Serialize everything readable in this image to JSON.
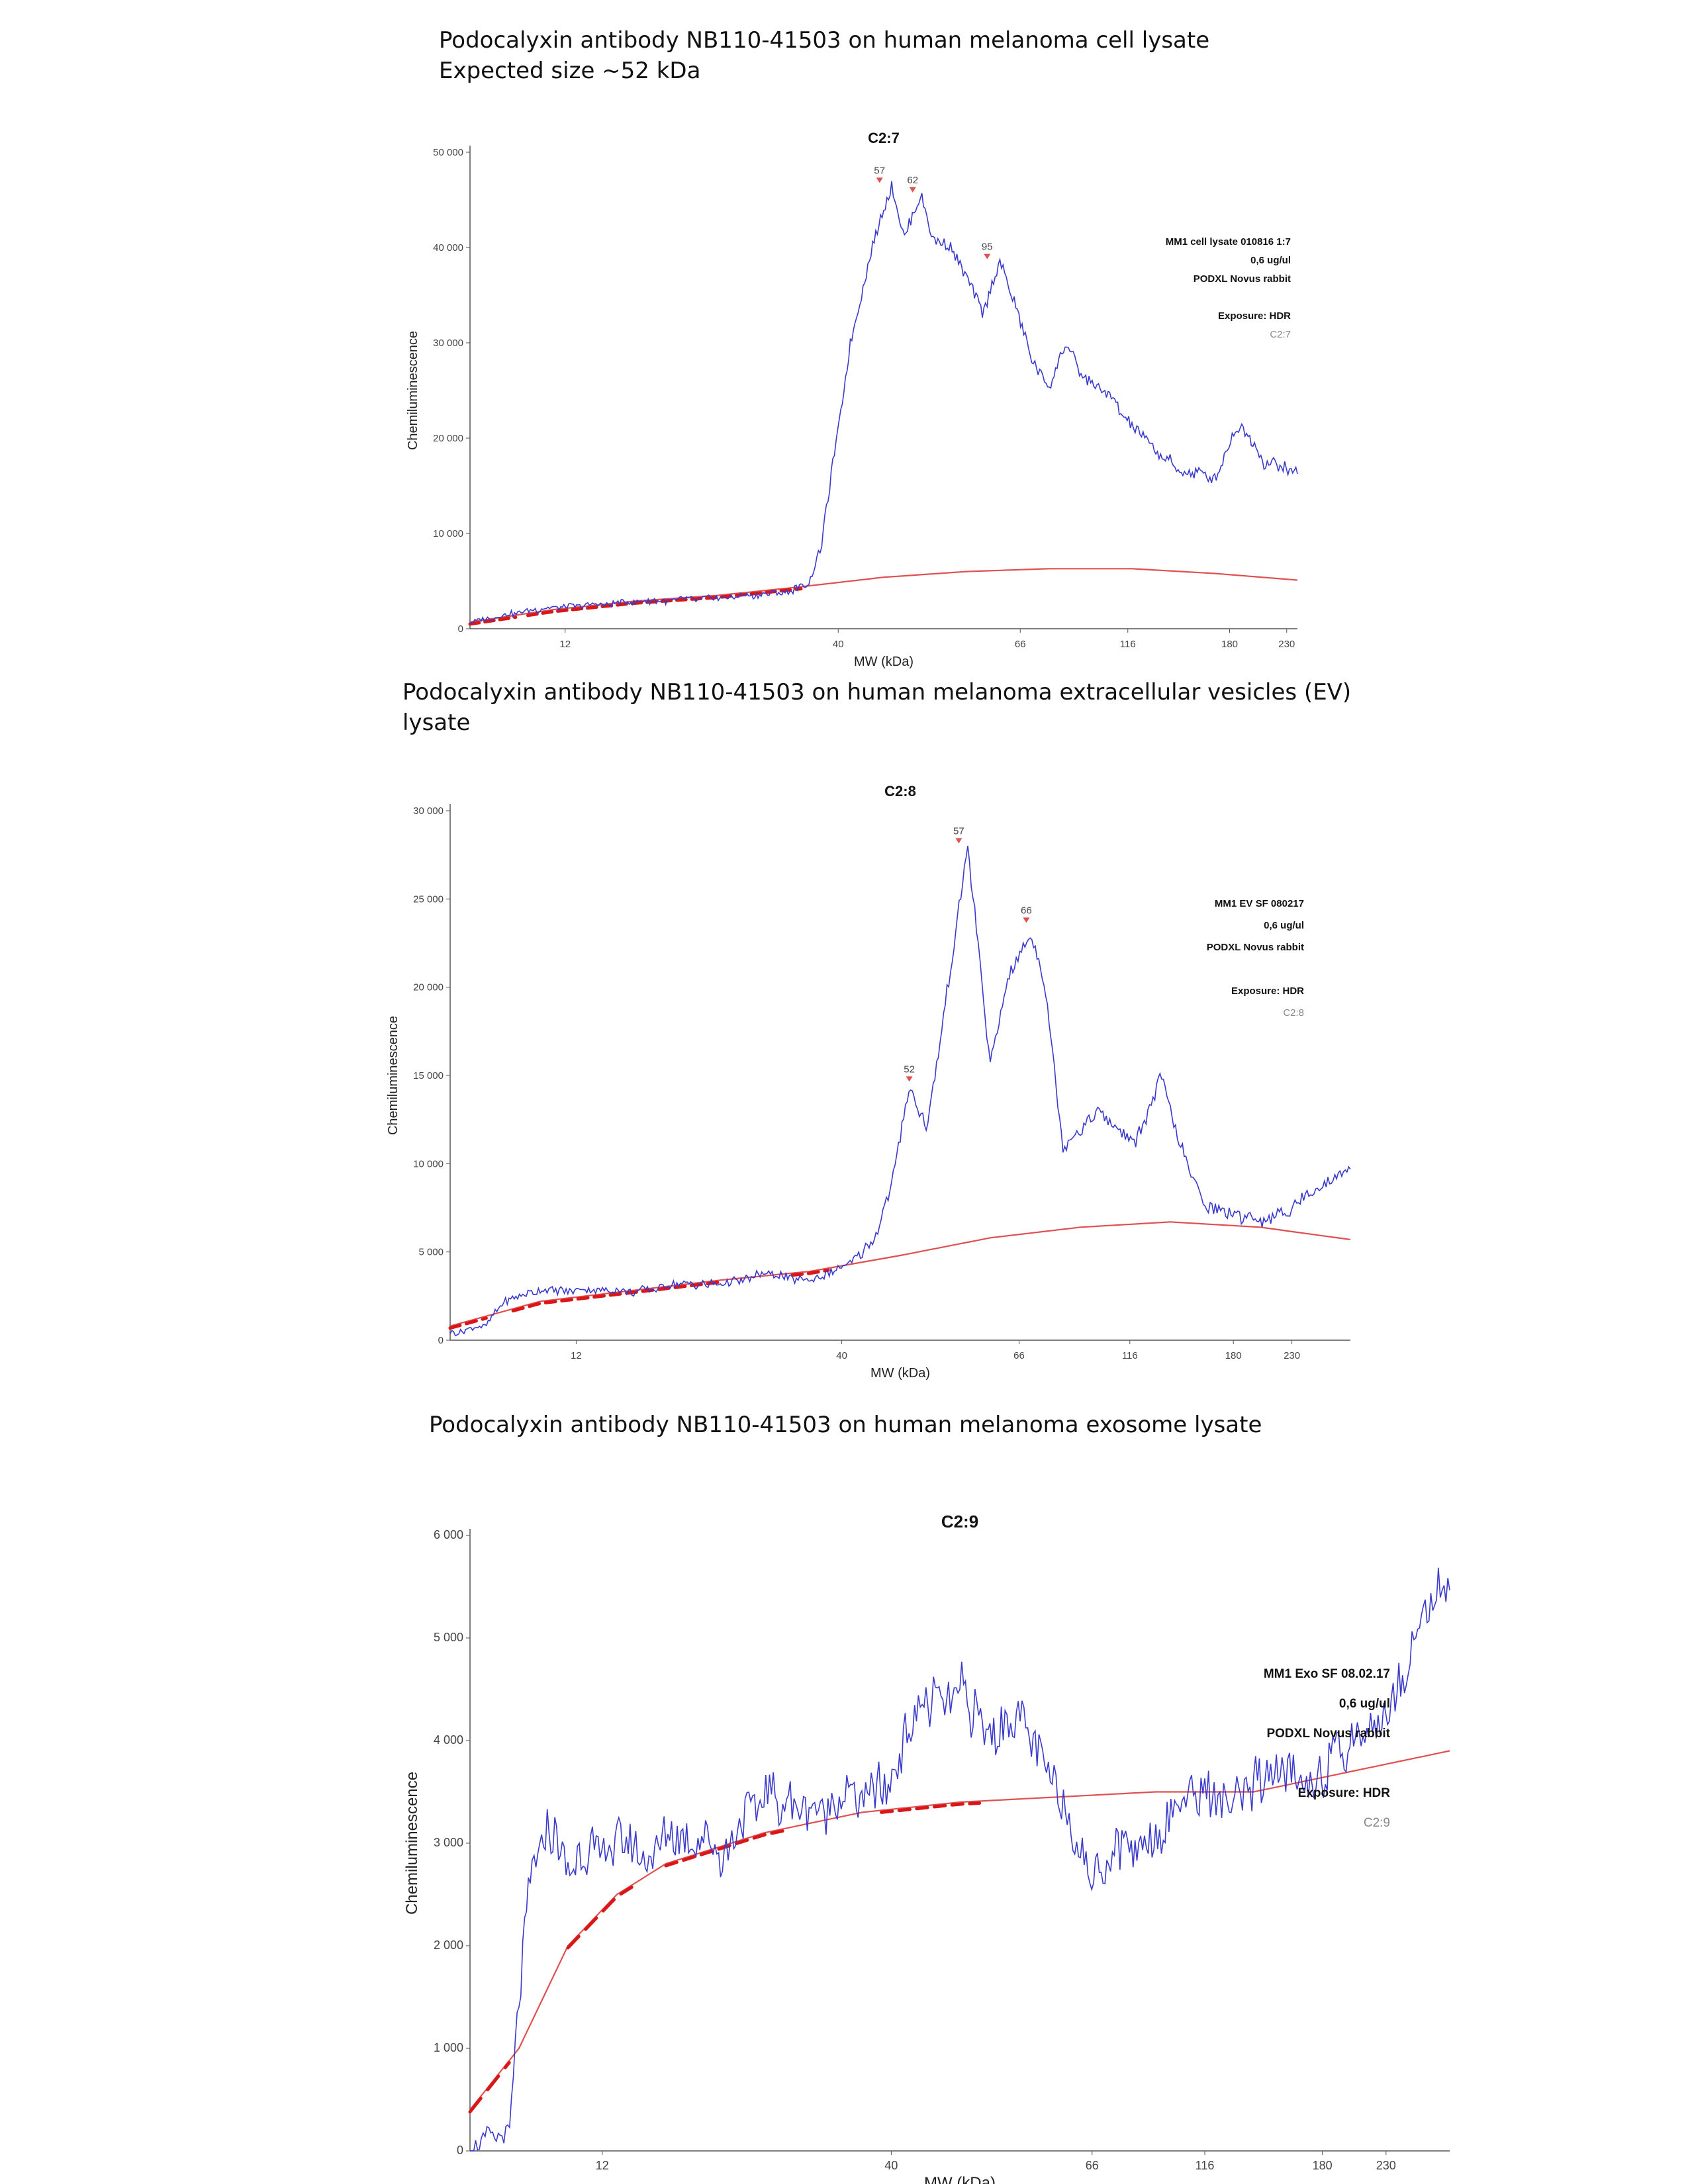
{
  "captions": [
    {
      "lines": [
        "Podocalyxin antibody NB110-41503 on human melanoma cell lysate",
        "Expected size ~52 kDa"
      ]
    },
    {
      "lines": [
        "Podocalyxin antibody NB110-41503 on human melanoma extracellular vesicles (EV)",
        "lysate"
      ]
    },
    {
      "lines": [
        "Podocalyxin antibody NB110-41503 on human melanoma exosome lysate"
      ]
    }
  ],
  "chart_data": [
    {
      "type": "line",
      "title": "C2:7",
      "xlabel": "MW (kDa)",
      "ylabel": "Chemiluminescence",
      "ylim": [
        0,
        50000
      ],
      "yticks": [
        0,
        10000,
        20000,
        30000,
        40000,
        50000
      ],
      "ytick_labels": [
        "0",
        "10 000",
        "20 000",
        "30 000",
        "40 000",
        "50 000"
      ],
      "xticks": [
        "12",
        "40",
        "66",
        "116",
        "180",
        "230"
      ],
      "legend_lines": [
        "MM1 cell lysate 010816 1:7",
        "0,6 ug/ul",
        "PODXL Novus rabbit",
        "",
        "Exposure: HDR",
        "C2:7"
      ],
      "peaks": [
        {
          "label": "57",
          "value": 46500
        },
        {
          "label": "62",
          "value": 45500
        },
        {
          "label": "95",
          "value": 38500
        }
      ],
      "colors": {
        "signal": "#3a3acc",
        "baseline": "#e05050",
        "markers": "#d81818",
        "peak": "#e05050"
      },
      "series": [
        {
          "role": "signal",
          "points": [
            [
              0.0,
              600
            ],
            [
              0.05,
              1600
            ],
            [
              0.1,
              2200
            ],
            [
              0.2,
              2800
            ],
            [
              0.3,
              3200
            ],
            [
              0.38,
              3800
            ],
            [
              0.41,
              4600
            ],
            [
              0.425,
              9000
            ],
            [
              0.44,
              18000
            ],
            [
              0.46,
              30000
            ],
            [
              0.48,
              38000
            ],
            [
              0.5,
              44000
            ],
            [
              0.51,
              46500
            ],
            [
              0.525,
              41000
            ],
            [
              0.545,
              45500
            ],
            [
              0.56,
              41000
            ],
            [
              0.58,
              40500
            ],
            [
              0.6,
              37000
            ],
            [
              0.62,
              33000
            ],
            [
              0.64,
              38500
            ],
            [
              0.66,
              33500
            ],
            [
              0.68,
              28000
            ],
            [
              0.7,
              25500
            ],
            [
              0.72,
              30000
            ],
            [
              0.74,
              26500
            ],
            [
              0.77,
              24500
            ],
            [
              0.8,
              21500
            ],
            [
              0.83,
              18500
            ],
            [
              0.86,
              16500
            ],
            [
              0.9,
              16000
            ],
            [
              0.93,
              21500
            ],
            [
              0.96,
              17500
            ],
            [
              1.0,
              16500
            ]
          ]
        },
        {
          "role": "baseline",
          "points": [
            [
              0.0,
              700
            ],
            [
              0.1,
              2000
            ],
            [
              0.2,
              2900
            ],
            [
              0.3,
              3500
            ],
            [
              0.4,
              4400
            ],
            [
              0.5,
              5400
            ],
            [
              0.6,
              6000
            ],
            [
              0.7,
              6300
            ],
            [
              0.8,
              6300
            ],
            [
              0.9,
              5800
            ],
            [
              1.0,
              5100
            ]
          ]
        }
      ],
      "markers": [
        [
          0.0,
          0.055,
          600
        ],
        [
          0.07,
          0.4,
          2600
        ]
      ]
    },
    {
      "type": "line",
      "title": "C2:8",
      "xlabel": "MW (kDa)",
      "ylabel": "Chemiluminescence",
      "ylim": [
        0,
        30000
      ],
      "yticks": [
        0,
        5000,
        10000,
        15000,
        20000,
        25000,
        30000
      ],
      "ytick_labels": [
        "0",
        "5 000",
        "10 000",
        "15 000",
        "20 000",
        "25 000",
        "30 000"
      ],
      "xticks": [
        "12",
        "40",
        "66",
        "116",
        "180",
        "230"
      ],
      "legend_lines": [
        "MM1 EV SF 080217",
        "0,6 ug/ul",
        "PODXL Novus rabbit",
        "",
        "Exposure: HDR",
        "C2:8"
      ],
      "peaks": [
        {
          "label": "52",
          "value": 14500
        },
        {
          "label": "57",
          "value": 28000
        },
        {
          "label": "66",
          "value": 23500
        }
      ],
      "colors": {
        "signal": "#3a3acc",
        "baseline": "#e05050",
        "markers": "#d81818",
        "peak": "#e05050"
      },
      "series": [
        {
          "role": "signal",
          "points": [
            [
              0.0,
              400
            ],
            [
              0.04,
              800
            ],
            [
              0.06,
              2200
            ],
            [
              0.1,
              2800
            ],
            [
              0.15,
              2900
            ],
            [
              0.2,
              2700
            ],
            [
              0.25,
              3100
            ],
            [
              0.3,
              3200
            ],
            [
              0.35,
              3700
            ],
            [
              0.4,
              3400
            ],
            [
              0.44,
              4200
            ],
            [
              0.47,
              5600
            ],
            [
              0.49,
              8500
            ],
            [
              0.51,
              14500
            ],
            [
              0.53,
              12000
            ],
            [
              0.55,
              19000
            ],
            [
              0.575,
              28000
            ],
            [
              0.6,
              15500
            ],
            [
              0.62,
              20500
            ],
            [
              0.645,
              23000
            ],
            [
              0.66,
              20500
            ],
            [
              0.68,
              11000
            ],
            [
              0.7,
              12000
            ],
            [
              0.72,
              13000
            ],
            [
              0.76,
              11000
            ],
            [
              0.79,
              15000
            ],
            [
              0.82,
              9500
            ],
            [
              0.84,
              7500
            ],
            [
              0.87,
              7200
            ],
            [
              0.9,
              6800
            ],
            [
              0.93,
              7200
            ],
            [
              0.96,
              8500
            ],
            [
              1.0,
              9800
            ]
          ]
        },
        {
          "role": "baseline",
          "points": [
            [
              0.0,
              800
            ],
            [
              0.1,
              2200
            ],
            [
              0.2,
              2800
            ],
            [
              0.3,
              3400
            ],
            [
              0.4,
              3900
            ],
            [
              0.5,
              4800
            ],
            [
              0.6,
              5800
            ],
            [
              0.7,
              6400
            ],
            [
              0.8,
              6700
            ],
            [
              0.9,
              6400
            ],
            [
              1.0,
              5700
            ]
          ]
        }
      ],
      "markers": [
        [
          0.0,
          0.04,
          700
        ],
        [
          0.07,
          0.3,
          2600
        ],
        [
          0.38,
          0.42,
          3500
        ]
      ]
    },
    {
      "type": "line",
      "title": "C2:9",
      "xlabel": "MW (kDa)",
      "ylabel": "Chemiluminescence",
      "ylim": [
        0,
        6000
      ],
      "yticks": [
        0,
        1000,
        2000,
        3000,
        4000,
        5000,
        6000
      ],
      "ytick_labels": [
        "0",
        "1 000",
        "2 000",
        "3 000",
        "4 000",
        "5 000",
        "6 000"
      ],
      "xticks": [
        "12",
        "40",
        "66",
        "116",
        "180",
        "230"
      ],
      "legend_lines": [
        "MM1 Exo SF 08.02.17",
        "0,6 ug/ul",
        "PODXL Novus rabbit",
        "",
        "Exposure: HDR",
        "C2:9"
      ],
      "peaks": [],
      "colors": {
        "signal": "#3a3acc",
        "baseline": "#e05050",
        "markers": "#d81818",
        "peak": "#e05050"
      },
      "series": [
        {
          "role": "signal",
          "points": [
            [
              0.0,
              50
            ],
            [
              0.04,
              200
            ],
            [
              0.05,
              1500
            ],
            [
              0.06,
              2600
            ],
            [
              0.08,
              3200
            ],
            [
              0.1,
              2800
            ],
            [
              0.14,
              3000
            ],
            [
              0.18,
              2900
            ],
            [
              0.22,
              3100
            ],
            [
              0.26,
              2900
            ],
            [
              0.3,
              3500
            ],
            [
              0.34,
              3300
            ],
            [
              0.38,
              3400
            ],
            [
              0.42,
              3500
            ],
            [
              0.46,
              4300
            ],
            [
              0.5,
              4500
            ],
            [
              0.53,
              4000
            ],
            [
              0.56,
              4200
            ],
            [
              0.6,
              3600
            ],
            [
              0.63,
              2700
            ],
            [
              0.66,
              2900
            ],
            [
              0.7,
              3100
            ],
            [
              0.74,
              3500
            ],
            [
              0.78,
              3400
            ],
            [
              0.82,
              3700
            ],
            [
              0.86,
              3600
            ],
            [
              0.9,
              4000
            ],
            [
              0.94,
              4300
            ],
            [
              0.97,
              5200
            ],
            [
              1.0,
              5500
            ]
          ]
        },
        {
          "role": "baseline",
          "points": [
            [
              0.0,
              400
            ],
            [
              0.05,
              1000
            ],
            [
              0.1,
              2000
            ],
            [
              0.15,
              2500
            ],
            [
              0.2,
              2800
            ],
            [
              0.3,
              3100
            ],
            [
              0.4,
              3300
            ],
            [
              0.5,
              3400
            ],
            [
              0.6,
              3450
            ],
            [
              0.7,
              3500
            ],
            [
              0.8,
              3500
            ],
            [
              0.9,
              3700
            ],
            [
              1.0,
              3900
            ]
          ]
        }
      ],
      "markers": [
        [
          0.0,
          0.04,
          600
        ],
        [
          0.1,
          0.17,
          2200
        ],
        [
          0.2,
          0.32,
          3000
        ],
        [
          0.42,
          0.52,
          3350
        ]
      ]
    }
  ]
}
